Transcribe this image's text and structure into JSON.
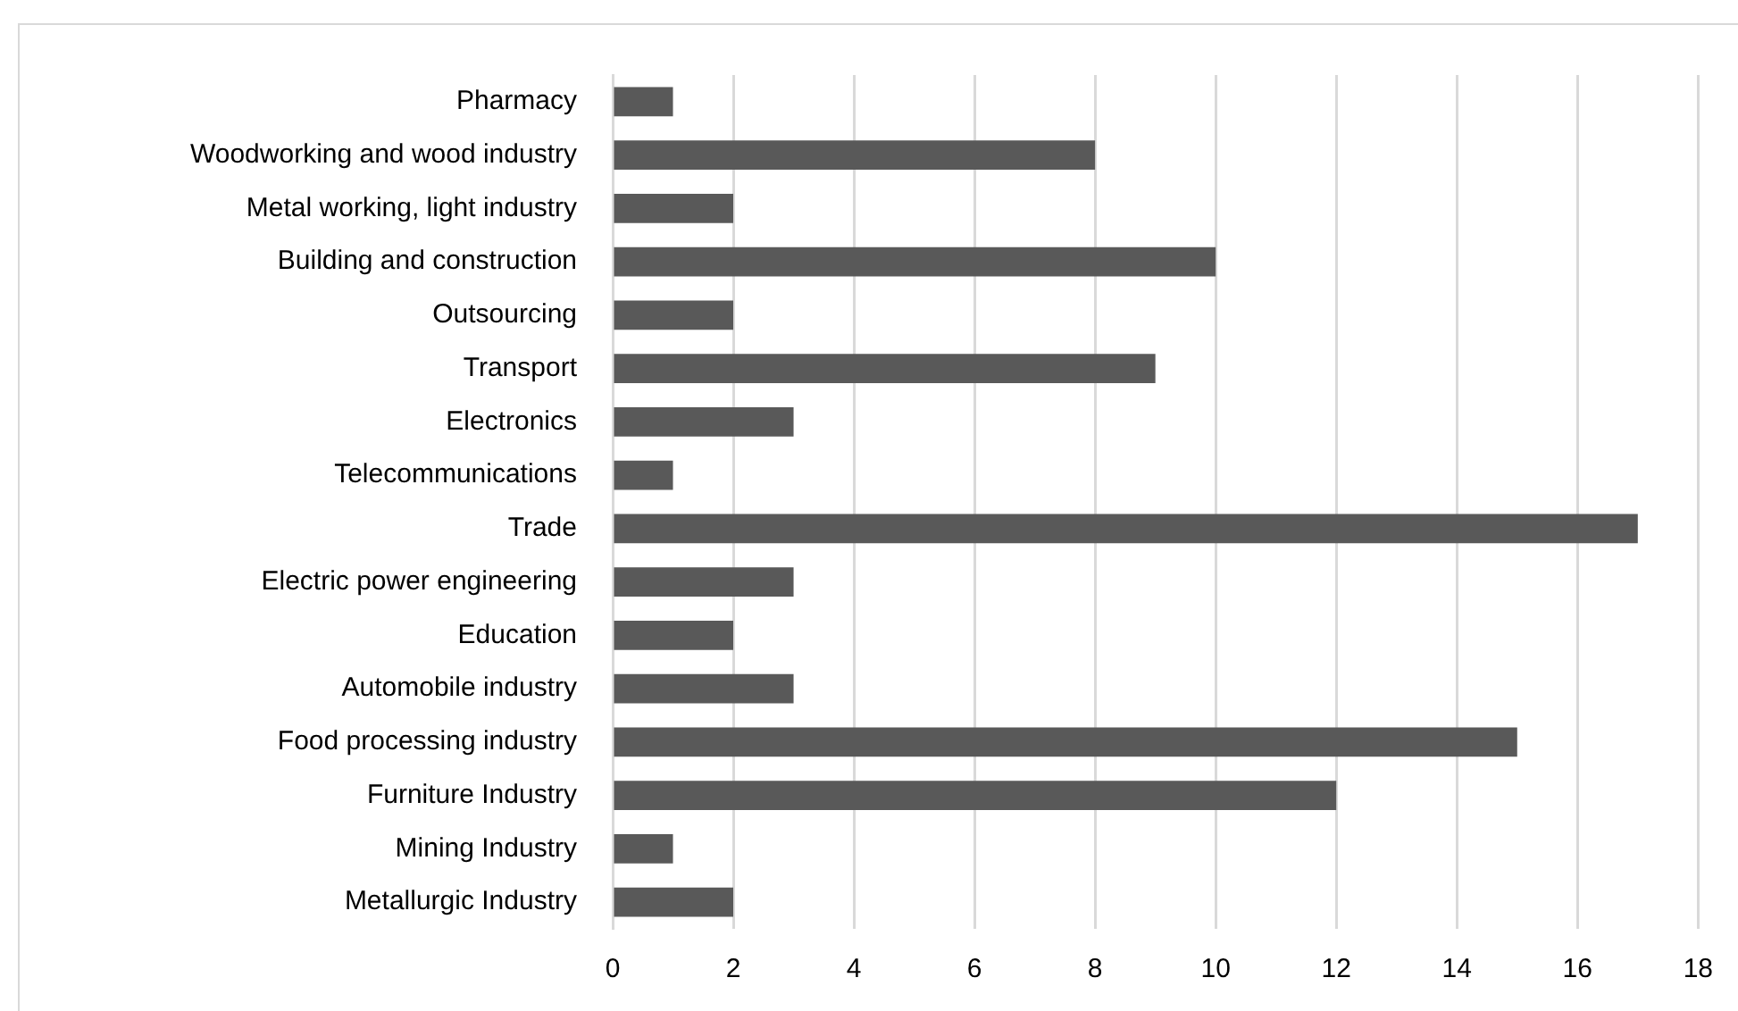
{
  "chart_data": {
    "type": "bar",
    "orientation": "horizontal",
    "categories": [
      "Pharmacy",
      "Woodworking and wood industry",
      "Metal working, light industry",
      "Building and construction",
      "Outsourcing",
      "Transport",
      "Electronics",
      "Telecommunications",
      "Trade",
      "Electric power engineering",
      "Education",
      "Automobile industry",
      "Food processing industry",
      "Furniture Industry",
      "Mining Industry",
      "Metallurgic Industry"
    ],
    "values": [
      1,
      8,
      2,
      10,
      2,
      9,
      3,
      1,
      17,
      3,
      2,
      3,
      15,
      12,
      1,
      2
    ],
    "color": "#595959",
    "xlim": [
      0,
      18
    ],
    "xticks": [
      0,
      2,
      4,
      6,
      8,
      10,
      12,
      14,
      16,
      18
    ],
    "grid": "x",
    "legend": false
  }
}
